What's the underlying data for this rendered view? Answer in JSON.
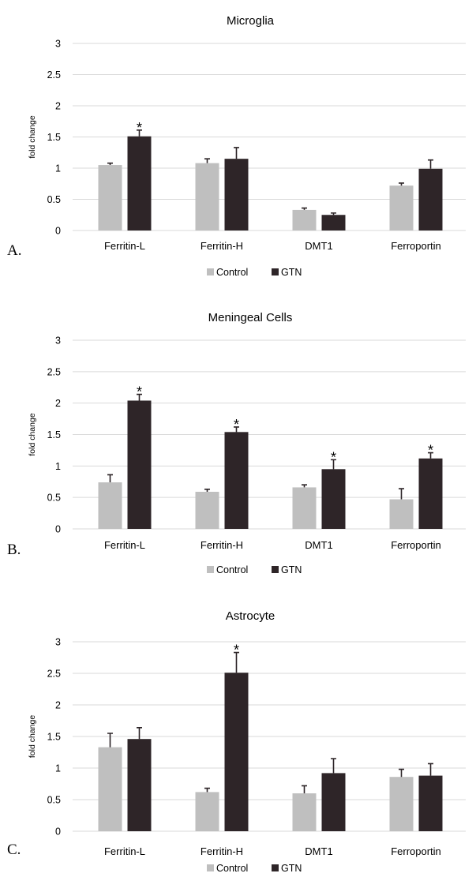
{
  "colors": {
    "control": "#bfbfbf",
    "gtn": "#2e2528"
  },
  "chart_data": [
    {
      "type": "bar",
      "panel": "A.",
      "title": "Microglia",
      "ylabel": "fold change",
      "xlabel": "",
      "ylim": [
        0,
        3
      ],
      "yticks": [
        0,
        0.5,
        1,
        1.5,
        2,
        2.5,
        3
      ],
      "ytick_labels": [
        "0",
        "0.5",
        "1",
        "1.5",
        "2",
        "2.5",
        "3"
      ],
      "grid": true,
      "legend": "bottom",
      "categories": [
        "Ferritin-L",
        "Ferritin-H",
        "DMT1",
        "Ferroportin"
      ],
      "series": [
        {
          "name": "Control",
          "values": [
            1.05,
            1.08,
            0.33,
            0.72
          ],
          "errors": [
            0.03,
            0.07,
            0.03,
            0.04
          ]
        },
        {
          "name": "GTN",
          "values": [
            1.51,
            1.15,
            0.25,
            0.99
          ],
          "errors": [
            0.1,
            0.18,
            0.03,
            0.14
          ]
        }
      ],
      "annotations": [
        {
          "text": "*",
          "category": 0,
          "series": 1
        }
      ]
    },
    {
      "type": "bar",
      "panel": "B.",
      "title": "Meningeal Cells",
      "ylabel": "fold change",
      "xlabel": "",
      "ylim": [
        0,
        3
      ],
      "yticks": [
        0,
        0.5,
        1,
        1.5,
        2,
        2.5,
        3
      ],
      "ytick_labels": [
        "0",
        "0.5",
        "1",
        "1.5",
        "2",
        "2.5",
        "3"
      ],
      "grid": true,
      "legend": "bottom",
      "categories": [
        "Ferritin-L",
        "Ferritin-H",
        "DMT1",
        "Ferroportin"
      ],
      "series": [
        {
          "name": "Control",
          "values": [
            0.74,
            0.59,
            0.66,
            0.47
          ],
          "errors": [
            0.12,
            0.04,
            0.04,
            0.17
          ]
        },
        {
          "name": "GTN",
          "values": [
            2.04,
            1.54,
            0.95,
            1.12
          ],
          "errors": [
            0.1,
            0.08,
            0.15,
            0.09
          ]
        }
      ],
      "annotations": [
        {
          "text": "*",
          "category": 0,
          "series": 1
        },
        {
          "text": "*",
          "category": 1,
          "series": 1
        },
        {
          "text": "*",
          "category": 2,
          "series": 1
        },
        {
          "text": "*",
          "category": 3,
          "series": 1
        }
      ]
    },
    {
      "type": "bar",
      "panel": "C.",
      "title": "Astrocyte",
      "ylabel": "fold change",
      "xlabel": "",
      "ylim": [
        0,
        3
      ],
      "yticks": [
        0,
        0.5,
        1,
        1.5,
        2,
        2.5,
        3
      ],
      "ytick_labels": [
        "0",
        "0.5",
        "1",
        "1.5",
        "2",
        "2.5",
        "3"
      ],
      "grid": true,
      "legend": "bottom",
      "categories": [
        "Ferritin-L",
        "Ferritin-H",
        "DMT1",
        "Ferroportin"
      ],
      "series": [
        {
          "name": "Control",
          "values": [
            1.33,
            0.62,
            0.6,
            0.86
          ],
          "errors": [
            0.22,
            0.06,
            0.12,
            0.12
          ]
        },
        {
          "name": "GTN",
          "values": [
            1.46,
            2.51,
            0.92,
            0.88
          ],
          "errors": [
            0.18,
            0.32,
            0.23,
            0.19
          ]
        }
      ],
      "annotations": [
        {
          "text": "*",
          "category": 1,
          "series": 1
        }
      ]
    }
  ]
}
